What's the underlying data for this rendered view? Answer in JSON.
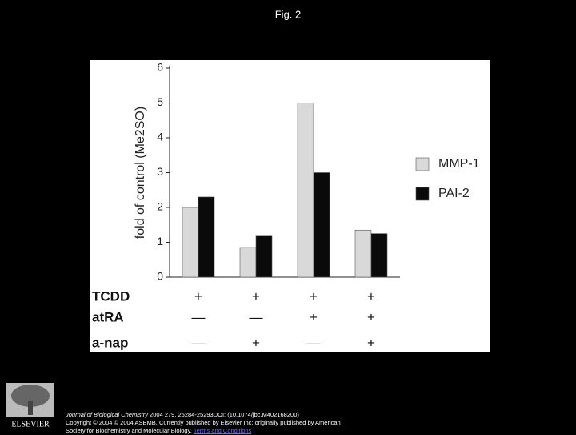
{
  "title": "Fig. 2",
  "chart_data": {
    "type": "bar",
    "y_label": "fold of control (Me2SO)",
    "categories": [
      null,
      null,
      null,
      null
    ],
    "series": [
      {
        "name": "MMP-1",
        "color": "#d9d9d9",
        "values": [
          2.0,
          0.85,
          5.0,
          1.35
        ]
      },
      {
        "name": "PAI-2",
        "color": "#0a0a0a",
        "values": [
          2.3,
          1.2,
          3.0,
          1.25
        ]
      }
    ],
    "ylim": [
      0,
      6
    ],
    "yticks": [
      0,
      1,
      2,
      3,
      4,
      5,
      6
    ],
    "legend": "right",
    "conditions": [
      {
        "name": "TCDD",
        "marks": [
          "+",
          "+",
          "+",
          "+"
        ]
      },
      {
        "name": "atRA",
        "marks": [
          "—",
          "—",
          "+",
          "+"
        ]
      },
      {
        "name": "a-nap",
        "marks": [
          "—",
          "+",
          "—",
          "+"
        ]
      }
    ]
  },
  "footer": {
    "journal": "Journal of Biological Chemistry",
    "details": " 2004 279, 25284-25293DOI: (10.1074/jbc.M402168200)",
    "copyright": "Copyright © 2004 © 2004 ASBMB. Currently published by Elsevier Inc; originally published by American",
    "society": "Society for Biochemistry and Molecular Biology.",
    "link": "Terms and Conditions"
  },
  "logo": "ELSEVIER"
}
